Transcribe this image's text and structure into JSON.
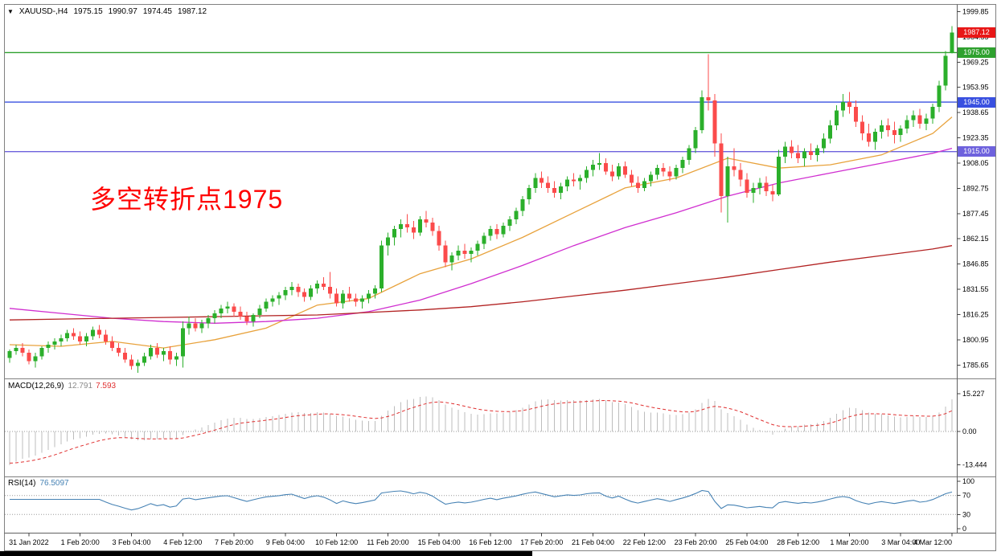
{
  "info_bar": {
    "dropdown_icon": "▼",
    "symbol": "XAUUSD-,H4",
    "open": "1975.15",
    "high": "1990.97",
    "low": "1974.45",
    "close": "1987.12"
  },
  "annotation": {
    "text": "多空转折点1975",
    "color": "#FF0000"
  },
  "colors": {
    "bull": "#2BAF2B",
    "bear": "#FB4B4B",
    "hline_green": "#2FA12F",
    "hline_blue": "#3950E0",
    "hline_violet": "#6E62DD",
    "price_badge": "#E81717",
    "ma_fast": "#E8A23C",
    "ma_mid": "#D02ED0",
    "ma_slow": "#B22222",
    "macd_hist": "#BDBDBD",
    "macd_signal": "#E03030",
    "rsi_line": "#4682B4"
  },
  "main_chart": {
    "y_ticks": [
      "1999.85",
      "1984.55",
      "1969.25",
      "1953.95",
      "1938.65",
      "1923.35",
      "1908.05",
      "1892.75",
      "1877.45",
      "1862.15",
      "1846.85",
      "1831.55",
      "1816.25",
      "1800.95",
      "1785.65"
    ],
    "hlines": [
      {
        "price": 1975.0,
        "label": "1975.00",
        "color_key": "hline_green"
      },
      {
        "price": 1945.0,
        "label": "1945.00",
        "color_key": "hline_blue"
      },
      {
        "price": 1915.0,
        "label": "1915.00",
        "color_key": "hline_violet"
      }
    ],
    "current_price": {
      "value": 1987.12,
      "label": "1987.12"
    }
  },
  "chart_data": {
    "type": "candlestick",
    "symbol": "XAUUSD-",
    "timeframe": "H4",
    "price_range": [
      1779,
      2002
    ],
    "x_labels": [
      {
        "bar": 3,
        "label": "31 Jan 2022"
      },
      {
        "bar": 11,
        "label": "1 Feb 20:00"
      },
      {
        "bar": 19,
        "label": "3 Feb 04:00"
      },
      {
        "bar": 27,
        "label": "4 Feb 12:00"
      },
      {
        "bar": 35,
        "label": "7 Feb 20:00"
      },
      {
        "bar": 43,
        "label": "9 Feb 04:00"
      },
      {
        "bar": 51,
        "label": "10 Feb 12:00"
      },
      {
        "bar": 59,
        "label": "11 Feb 20:00"
      },
      {
        "bar": 67,
        "label": "15 Feb 04:00"
      },
      {
        "bar": 75,
        "label": "16 Feb 12:00"
      },
      {
        "bar": 83,
        "label": "17 Feb 20:00"
      },
      {
        "bar": 91,
        "label": "21 Feb 04:00"
      },
      {
        "bar": 99,
        "label": "22 Feb 12:00"
      },
      {
        "bar": 107,
        "label": "23 Feb 20:00"
      },
      {
        "bar": 115,
        "label": "25 Feb 04:00"
      },
      {
        "bar": 123,
        "label": "28 Feb 12:00"
      },
      {
        "bar": 131,
        "label": "1 Mar 20:00"
      },
      {
        "bar": 139,
        "label": "3 Mar 04:00"
      },
      {
        "bar": 147,
        "label": "4 Mar 12:00"
      }
    ],
    "candles": [
      [
        1790,
        1795,
        1787,
        1794
      ],
      [
        1794,
        1798,
        1792,
        1796
      ],
      [
        1796,
        1799,
        1791,
        1793
      ],
      [
        1793,
        1795,
        1786,
        1788
      ],
      [
        1788,
        1793,
        1784,
        1791
      ],
      [
        1791,
        1797,
        1789,
        1796
      ],
      [
        1796,
        1800,
        1793,
        1798
      ],
      [
        1798,
        1802,
        1795,
        1800
      ],
      [
        1800,
        1804,
        1797,
        1802
      ],
      [
        1802,
        1807,
        1800,
        1805
      ],
      [
        1805,
        1808,
        1801,
        1803
      ],
      [
        1803,
        1806,
        1798,
        1800
      ],
      [
        1800,
        1805,
        1797,
        1803
      ],
      [
        1803,
        1809,
        1801,
        1807
      ],
      [
        1807,
        1810,
        1802,
        1804
      ],
      [
        1804,
        1807,
        1798,
        1800
      ],
      [
        1800,
        1803,
        1794,
        1796
      ],
      [
        1796,
        1799,
        1791,
        1793
      ],
      [
        1793,
        1796,
        1787,
        1789
      ],
      [
        1789,
        1792,
        1783,
        1785
      ],
      [
        1785,
        1789,
        1781,
        1787
      ],
      [
        1787,
        1793,
        1785,
        1791
      ],
      [
        1791,
        1798,
        1789,
        1796
      ],
      [
        1796,
        1799,
        1790,
        1792
      ],
      [
        1792,
        1796,
        1788,
        1794
      ],
      [
        1794,
        1797,
        1786,
        1789
      ],
      [
        1789,
        1793,
        1785,
        1791
      ],
      [
        1791,
        1812,
        1784,
        1808
      ],
      [
        1808,
        1815,
        1804,
        1811
      ],
      [
        1811,
        1814,
        1806,
        1808
      ],
      [
        1808,
        1813,
        1805,
        1811
      ],
      [
        1811,
        1816,
        1808,
        1814
      ],
      [
        1814,
        1819,
        1811,
        1817
      ],
      [
        1817,
        1822,
        1814,
        1820
      ],
      [
        1820,
        1824,
        1817,
        1821
      ],
      [
        1821,
        1823,
        1815,
        1818
      ],
      [
        1818,
        1821,
        1813,
        1815
      ],
      [
        1815,
        1818,
        1810,
        1812
      ],
      [
        1812,
        1817,
        1809,
        1816
      ],
      [
        1816,
        1822,
        1814,
        1820
      ],
      [
        1820,
        1826,
        1818,
        1824
      ],
      [
        1824,
        1828,
        1821,
        1826
      ],
      [
        1826,
        1830,
        1822,
        1828
      ],
      [
        1828,
        1833,
        1825,
        1831
      ],
      [
        1831,
        1836,
        1828,
        1833
      ],
      [
        1833,
        1835,
        1827,
        1830
      ],
      [
        1830,
        1832,
        1824,
        1827
      ],
      [
        1827,
        1834,
        1825,
        1832
      ],
      [
        1832,
        1837,
        1829,
        1835
      ],
      [
        1835,
        1839,
        1831,
        1833
      ],
      [
        1833,
        1842,
        1826,
        1829
      ],
      [
        1829,
        1832,
        1821,
        1823
      ],
      [
        1823,
        1831,
        1820,
        1829
      ],
      [
        1829,
        1833,
        1824,
        1826
      ],
      [
        1826,
        1829,
        1821,
        1824
      ],
      [
        1824,
        1828,
        1820,
        1826
      ],
      [
        1826,
        1831,
        1823,
        1829
      ],
      [
        1829,
        1834,
        1826,
        1832
      ],
      [
        1832,
        1861,
        1830,
        1858
      ],
      [
        1858,
        1866,
        1852,
        1863
      ],
      [
        1863,
        1870,
        1858,
        1868
      ],
      [
        1868,
        1874,
        1863,
        1871
      ],
      [
        1871,
        1877,
        1866,
        1869
      ],
      [
        1869,
        1873,
        1862,
        1866
      ],
      [
        1866,
        1876,
        1864,
        1874
      ],
      [
        1874,
        1879,
        1869,
        1872
      ],
      [
        1872,
        1875,
        1864,
        1867
      ],
      [
        1867,
        1870,
        1855,
        1858
      ],
      [
        1858,
        1861,
        1845,
        1848
      ],
      [
        1848,
        1854,
        1843,
        1852
      ],
      [
        1852,
        1858,
        1849,
        1855
      ],
      [
        1855,
        1859,
        1850,
        1853
      ],
      [
        1853,
        1857,
        1848,
        1855
      ],
      [
        1855,
        1861,
        1852,
        1859
      ],
      [
        1859,
        1866,
        1856,
        1864
      ],
      [
        1864,
        1870,
        1861,
        1868
      ],
      [
        1868,
        1871,
        1862,
        1865
      ],
      [
        1865,
        1872,
        1863,
        1870
      ],
      [
        1870,
        1876,
        1867,
        1874
      ],
      [
        1874,
        1881,
        1871,
        1879
      ],
      [
        1879,
        1888,
        1876,
        1886
      ],
      [
        1886,
        1895,
        1883,
        1893
      ],
      [
        1893,
        1902,
        1890,
        1899
      ],
      [
        1899,
        1903,
        1893,
        1896
      ],
      [
        1896,
        1900,
        1890,
        1893
      ],
      [
        1893,
        1897,
        1887,
        1890
      ],
      [
        1890,
        1896,
        1886,
        1894
      ],
      [
        1894,
        1900,
        1891,
        1898
      ],
      [
        1898,
        1902,
        1894,
        1897
      ],
      [
        1897,
        1901,
        1892,
        1899
      ],
      [
        1899,
        1906,
        1896,
        1904
      ],
      [
        1904,
        1910,
        1900,
        1907
      ],
      [
        1907,
        1914,
        1904,
        1908
      ],
      [
        1908,
        1911,
        1901,
        1903
      ],
      [
        1903,
        1907,
        1897,
        1900
      ],
      [
        1900,
        1908,
        1898,
        1906
      ],
      [
        1906,
        1909,
        1899,
        1901
      ],
      [
        1901,
        1904,
        1894,
        1896
      ],
      [
        1896,
        1900,
        1890,
        1893
      ],
      [
        1893,
        1899,
        1891,
        1897
      ],
      [
        1897,
        1903,
        1894,
        1901
      ],
      [
        1901,
        1907,
        1898,
        1905
      ],
      [
        1905,
        1908,
        1900,
        1903
      ],
      [
        1903,
        1906,
        1897,
        1900
      ],
      [
        1900,
        1907,
        1898,
        1905
      ],
      [
        1905,
        1912,
        1902,
        1910
      ],
      [
        1910,
        1919,
        1907,
        1917
      ],
      [
        1917,
        1930,
        1914,
        1928
      ],
      [
        1928,
        1952,
        1926,
        1948
      ],
      [
        1948,
        1974,
        1940,
        1946
      ],
      [
        1946,
        1950,
        1912,
        1920
      ],
      [
        1920,
        1926,
        1878,
        1888
      ],
      [
        1888,
        1912,
        1872,
        1906
      ],
      [
        1906,
        1917,
        1900,
        1904
      ],
      [
        1904,
        1908,
        1894,
        1898
      ],
      [
        1898,
        1902,
        1887,
        1890
      ],
      [
        1890,
        1896,
        1884,
        1893
      ],
      [
        1893,
        1899,
        1889,
        1896
      ],
      [
        1896,
        1900,
        1888,
        1891
      ],
      [
        1891,
        1895,
        1885,
        1889
      ],
      [
        1889,
        1916,
        1888,
        1912
      ],
      [
        1912,
        1921,
        1908,
        1918
      ],
      [
        1918,
        1922,
        1911,
        1914
      ],
      [
        1914,
        1919,
        1908,
        1911
      ],
      [
        1911,
        1917,
        1906,
        1915
      ],
      [
        1915,
        1920,
        1910,
        1913
      ],
      [
        1913,
        1919,
        1909,
        1917
      ],
      [
        1917,
        1926,
        1914,
        1923
      ],
      [
        1923,
        1934,
        1920,
        1931
      ],
      [
        1931,
        1943,
        1928,
        1940
      ],
      [
        1940,
        1950,
        1936,
        1945
      ],
      [
        1945,
        1951,
        1938,
        1942
      ],
      [
        1942,
        1946,
        1930,
        1933
      ],
      [
        1933,
        1937,
        1922,
        1926
      ],
      [
        1926,
        1932,
        1918,
        1921
      ],
      [
        1921,
        1929,
        1916,
        1927
      ],
      [
        1927,
        1934,
        1923,
        1931
      ],
      [
        1931,
        1935,
        1924,
        1928
      ],
      [
        1928,
        1933,
        1920,
        1925
      ],
      [
        1925,
        1931,
        1921,
        1929
      ],
      [
        1929,
        1937,
        1926,
        1934
      ],
      [
        1934,
        1940,
        1930,
        1937
      ],
      [
        1937,
        1941,
        1929,
        1932
      ],
      [
        1932,
        1938,
        1928,
        1935
      ],
      [
        1935,
        1944,
        1932,
        1942
      ],
      [
        1942,
        1958,
        1939,
        1955
      ],
      [
        1955,
        1976,
        1952,
        1973
      ],
      [
        1975.15,
        1990.97,
        1974.45,
        1987.12
      ]
    ],
    "moving_averages": [
      {
        "name": "ma-fast-line",
        "color_key": "ma_fast",
        "points": [
          [
            0,
            1798
          ],
          [
            8,
            1797
          ],
          [
            16,
            1800
          ],
          [
            24,
            1796
          ],
          [
            32,
            1801
          ],
          [
            40,
            1808
          ],
          [
            48,
            1822
          ],
          [
            56,
            1826
          ],
          [
            64,
            1841
          ],
          [
            72,
            1850
          ],
          [
            80,
            1863
          ],
          [
            88,
            1878
          ],
          [
            96,
            1893
          ],
          [
            104,
            1899
          ],
          [
            112,
            1911
          ],
          [
            120,
            1905
          ],
          [
            128,
            1907
          ],
          [
            136,
            1913
          ],
          [
            144,
            1926
          ],
          [
            147,
            1936
          ]
        ]
      },
      {
        "name": "ma-mid-line",
        "color_key": "ma_mid",
        "points": [
          [
            0,
            1820
          ],
          [
            8,
            1817
          ],
          [
            16,
            1814
          ],
          [
            24,
            1812
          ],
          [
            32,
            1811
          ],
          [
            40,
            1812
          ],
          [
            48,
            1814
          ],
          [
            56,
            1818
          ],
          [
            64,
            1825
          ],
          [
            72,
            1835
          ],
          [
            80,
            1846
          ],
          [
            88,
            1858
          ],
          [
            96,
            1869
          ],
          [
            104,
            1878
          ],
          [
            112,
            1888
          ],
          [
            120,
            1896
          ],
          [
            128,
            1902
          ],
          [
            136,
            1908
          ],
          [
            144,
            1914
          ],
          [
            147,
            1917
          ]
        ]
      },
      {
        "name": "ma-slow-line",
        "color_key": "ma_slow",
        "points": [
          [
            0,
            1813
          ],
          [
            8,
            1813.5
          ],
          [
            16,
            1814
          ],
          [
            24,
            1814.5
          ],
          [
            32,
            1815
          ],
          [
            40,
            1815.5
          ],
          [
            48,
            1816
          ],
          [
            56,
            1817.5
          ],
          [
            64,
            1819
          ],
          [
            72,
            1821
          ],
          [
            80,
            1824
          ],
          [
            88,
            1827.5
          ],
          [
            96,
            1831
          ],
          [
            104,
            1835
          ],
          [
            112,
            1839
          ],
          [
            120,
            1843.5
          ],
          [
            128,
            1848
          ],
          [
            136,
            1852
          ],
          [
            144,
            1856
          ],
          [
            147,
            1858
          ]
        ]
      }
    ],
    "macd": {
      "label": "MACD(12,26,9)",
      "value_main": "12.791",
      "value_signal": "7.593",
      "params": [
        12,
        26,
        9
      ],
      "axis_labels": [
        "15.227",
        "0.00",
        "-13.444"
      ]
    },
    "rsi": {
      "label": "RSI(14)",
      "value": "76.5097",
      "period": 14,
      "dashed_levels": [
        70,
        30
      ],
      "axis_labels": [
        "100",
        "70",
        "30",
        "0"
      ]
    }
  }
}
